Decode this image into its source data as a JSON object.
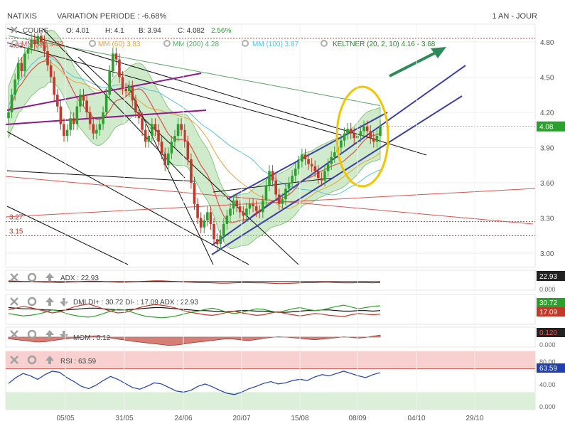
{
  "header": {
    "instrument": "NATIXIS",
    "variation": "VARIATION PERIODE : -6.68%",
    "period": "1 AN - JOUR"
  },
  "legend": {
    "cours": "COURS",
    "open": "O: 4.01",
    "high": "H: 4.1",
    "low": "B: 3.94",
    "close": "C: 4.082",
    "change": "2.56%",
    "mm20": "MM (20) 3.92",
    "mm60": "MM (60) 3.83",
    "mm200": "MM (200) 4.28",
    "mm100": "MM (100) 3.87",
    "keltner": "KELTNER (20, 2, 10) 4.16 - 3.68"
  },
  "colors": {
    "up": "#2ca02c",
    "down": "#c0392b",
    "mm20": "#d9534f",
    "mm60": "#e8a33d",
    "mm200": "#5aa469",
    "mm100": "#5bc0de",
    "keltner_fill": "#a9dba3",
    "channel": "#3b3fa8",
    "purple": "#8b1a8b",
    "ellipse": "#f2c500",
    "arrow": "#2e8b57",
    "adx": "#c0392b",
    "di_plus": "#2ca02c",
    "di_minus": "#c0392b",
    "rsi": "#1f3fb0"
  },
  "chart_data": [
    {
      "type": "candlestick",
      "ylim": [
        2.88,
        4.95
      ],
      "yticks": [
        "4.80",
        "4.50",
        "4.20",
        "3.90",
        "3.60",
        "3.30",
        "3.00"
      ],
      "xticks": [
        "05/05",
        "31/05",
        "24/06",
        "20/07",
        "15/08",
        "08/09",
        "04/10",
        "29/10"
      ],
      "last_price": "4.08",
      "levels": [
        {
          "label": "3.27",
          "value": 3.27
        },
        {
          "label": "3.15",
          "value": 3.15
        }
      ],
      "label_4_83": "4.83",
      "close": [
        4.2,
        4.35,
        4.48,
        4.62,
        4.55,
        4.7,
        4.75,
        4.82,
        4.78,
        4.85,
        4.8,
        4.72,
        4.6,
        4.5,
        4.35,
        4.25,
        4.1,
        4.0,
        4.05,
        4.15,
        4.1,
        4.25,
        4.35,
        4.3,
        4.2,
        4.1,
        4.02,
        4.05,
        4.1,
        4.2,
        4.35,
        4.55,
        4.7,
        4.65,
        4.5,
        4.4,
        4.38,
        4.42,
        4.3,
        4.2,
        4.15,
        4.05,
        3.95,
        4.0,
        4.1,
        4.05,
        3.95,
        3.85,
        3.75,
        3.85,
        3.95,
        4.0,
        4.1,
        4.05,
        3.95,
        3.8,
        3.6,
        3.42,
        3.3,
        3.22,
        3.28,
        3.35,
        3.25,
        3.12,
        3.08,
        3.15,
        3.25,
        3.32,
        3.38,
        3.45,
        3.4,
        3.35,
        3.32,
        3.38,
        3.42,
        3.4,
        3.36,
        3.35,
        3.45,
        3.58,
        3.7,
        3.62,
        3.5,
        3.42,
        3.46,
        3.55,
        3.6,
        3.66,
        3.72,
        3.78,
        3.84,
        3.8,
        3.76,
        3.74,
        3.7,
        3.64,
        3.62,
        3.7,
        3.76,
        3.82,
        3.86,
        3.9,
        3.96,
        4.02,
        4.06,
        4.02,
        3.98,
        4.0,
        4.04,
        4.08,
        4.04,
        3.98,
        3.95,
        4.0,
        4.082
      ]
    },
    {
      "type": "line",
      "name": "ADX",
      "label": "ADX : 22.93",
      "value": "22.93",
      "zero": "0.000",
      "ylim": [
        0,
        60
      ],
      "values": [
        28,
        27,
        26,
        26,
        25,
        24,
        24,
        23,
        24,
        25,
        26,
        27,
        27,
        26,
        25,
        24,
        24,
        25,
        26,
        27,
        28,
        28,
        27,
        26,
        25,
        24,
        23,
        23,
        22,
        21,
        21,
        22,
        23,
        23,
        22,
        22,
        21,
        20,
        20,
        21,
        22,
        23,
        23,
        24,
        24,
        23,
        22,
        22,
        23,
        23,
        22,
        23
      ]
    },
    {
      "type": "line",
      "name": "DMI",
      "label": "DMI DI+ : 30.72 DI- : 17.09 ADX : 22.93",
      "di_plus_value": "30.72",
      "di_minus_value": "17.09",
      "ylim": [
        0,
        50
      ],
      "di_plus": [
        18,
        16,
        14,
        15,
        17,
        20,
        24,
        22,
        18,
        15,
        13,
        12,
        14,
        18,
        22,
        25,
        24,
        20,
        16,
        13,
        12,
        11,
        12,
        14,
        17,
        20,
        22,
        25,
        27,
        24,
        20,
        18,
        20,
        23,
        26,
        25,
        22,
        20,
        23,
        26,
        28,
        25,
        23,
        24,
        27,
        30,
        32,
        29,
        26,
        28,
        30,
        31
      ],
      "di_minus": [
        24,
        27,
        30,
        28,
        25,
        22,
        19,
        21,
        25,
        29,
        32,
        34,
        30,
        26,
        22,
        19,
        20,
        24,
        28,
        31,
        33,
        32,
        30,
        27,
        23,
        20,
        18,
        16,
        15,
        17,
        20,
        22,
        19,
        17,
        15,
        16,
        19,
        21,
        18,
        16,
        14,
        16,
        18,
        17,
        15,
        14,
        13,
        16,
        18,
        17,
        16,
        17
      ],
      "adx": [
        28,
        27,
        26,
        26,
        25,
        24,
        24,
        23,
        24,
        25,
        26,
        27,
        27,
        26,
        25,
        24,
        24,
        25,
        26,
        27,
        28,
        28,
        27,
        26,
        25,
        24,
        23,
        23,
        22,
        21,
        21,
        22,
        23,
        23,
        22,
        22,
        21,
        20,
        20,
        21,
        22,
        23,
        23,
        24,
        24,
        23,
        22,
        22,
        23,
        23,
        22,
        23
      ]
    },
    {
      "type": "area",
      "name": "MOM",
      "label": "MOM : 0.12",
      "value": "0.120",
      "zero": "0.000",
      "ylim": [
        -0.6,
        0.6
      ],
      "values": [
        -0.1,
        -0.15,
        -0.2,
        -0.25,
        -0.3,
        -0.28,
        -0.22,
        -0.15,
        -0.1,
        -0.05,
        -0.02,
        0.05,
        0.08,
        0.02,
        -0.05,
        -0.12,
        -0.18,
        -0.25,
        -0.3,
        -0.35,
        -0.4,
        -0.45,
        -0.5,
        -0.48,
        -0.42,
        -0.35,
        -0.3,
        -0.25,
        -0.2,
        -0.15,
        -0.1,
        -0.12,
        -0.18,
        -0.2,
        -0.15,
        -0.08,
        -0.02,
        0.02,
        0.0,
        -0.04,
        -0.08,
        -0.12,
        -0.16,
        -0.12,
        -0.08,
        -0.04,
        0.02,
        -0.02,
        -0.06,
        -0.02,
        0.06,
        0.12
      ]
    },
    {
      "type": "line",
      "name": "RSI",
      "label": "RSI : 63.59",
      "value": "63.59",
      "ylim": [
        0,
        100
      ],
      "yticks": [
        "80.00",
        "40.00",
        "0.000"
      ],
      "upper": 70,
      "lower": 30,
      "values": [
        45,
        55,
        62,
        58,
        52,
        60,
        66,
        64,
        55,
        48,
        40,
        36,
        42,
        50,
        57,
        52,
        45,
        38,
        35,
        40,
        46,
        44,
        38,
        32,
        30,
        33,
        40,
        44,
        39,
        33,
        28,
        26,
        30,
        36,
        40,
        45,
        48,
        44,
        46,
        50,
        52,
        50,
        56,
        60,
        58,
        62,
        66,
        62,
        58,
        55,
        60,
        63.59
      ]
    }
  ]
}
